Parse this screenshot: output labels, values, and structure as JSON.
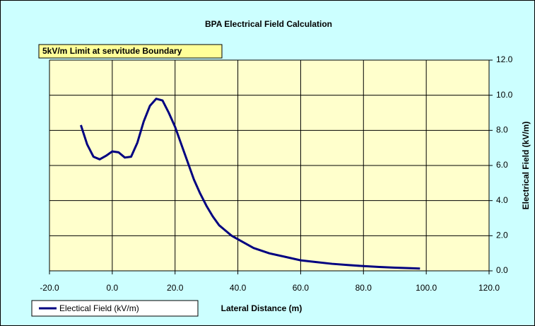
{
  "chart_data": {
    "type": "line",
    "title": "BPA Electrical Field Calculation",
    "annotation": "5kV/m Limit at servitude Boundary",
    "x_label": "Lateral Distance (m)",
    "y_label": "Electrical Field (kV/m)",
    "x": [
      -10,
      -8,
      -6,
      -4,
      -2,
      0,
      2,
      4,
      6,
      8,
      10,
      12,
      14,
      16,
      18,
      20,
      22,
      24,
      26,
      28,
      30,
      32,
      34,
      36,
      38,
      40,
      45,
      50,
      55,
      60,
      65,
      70,
      75,
      80,
      85,
      90,
      95,
      98
    ],
    "series": [
      {
        "name": "Electical Field (kV/m)",
        "color": "#000080",
        "values": [
          8.3,
          7.2,
          6.5,
          6.35,
          6.55,
          6.8,
          6.75,
          6.45,
          6.5,
          7.3,
          8.5,
          9.4,
          9.8,
          9.7,
          9.0,
          8.2,
          7.2,
          6.2,
          5.2,
          4.4,
          3.7,
          3.1,
          2.6,
          2.3,
          2.0,
          1.8,
          1.3,
          1.0,
          0.8,
          0.6,
          0.5,
          0.4,
          0.33,
          0.27,
          0.22,
          0.18,
          0.15,
          0.13
        ]
      }
    ],
    "xlim": [
      -20,
      120
    ],
    "xticks": [
      {
        "value": -20,
        "label": "-20.0"
      },
      {
        "value": 0,
        "label": "0.0"
      },
      {
        "value": 20,
        "label": "20.0"
      },
      {
        "value": 40,
        "label": "40.0"
      },
      {
        "value": 60,
        "label": "60.0"
      },
      {
        "value": 80,
        "label": "80.0"
      },
      {
        "value": 100,
        "label": "100.0"
      },
      {
        "value": 120,
        "label": "120.0"
      }
    ],
    "ylim": [
      0,
      12
    ],
    "yticks": [
      {
        "value": 0,
        "label": "0.0"
      },
      {
        "value": 2,
        "label": "2.0"
      },
      {
        "value": 4,
        "label": "4.0"
      },
      {
        "value": 6,
        "label": "6.0"
      },
      {
        "value": 8,
        "label": "8.0"
      },
      {
        "value": 10,
        "label": "10.0"
      },
      {
        "value": 12,
        "label": "12.0"
      }
    ],
    "y_axis_side": "right",
    "grid": true,
    "legend": "bottom-left"
  }
}
